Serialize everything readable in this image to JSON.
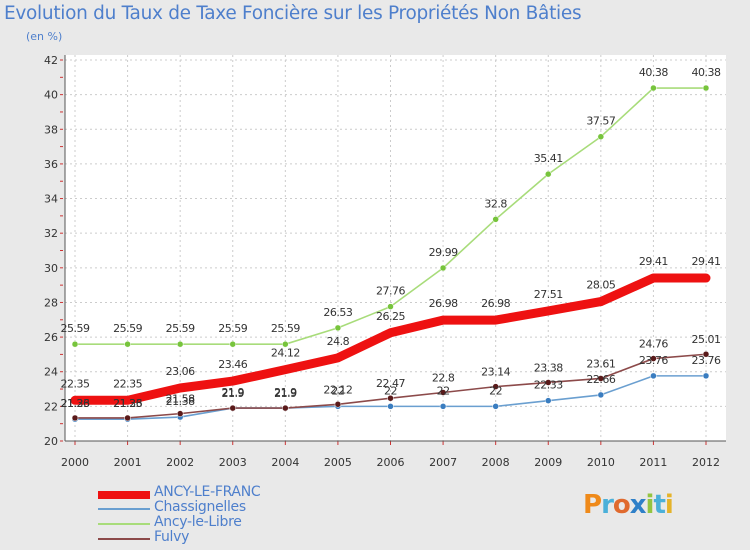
{
  "title": "Evolution du Taux de Taxe Foncière sur les Propriétés Non Bâties",
  "unit_label": "(en %)",
  "logo_text": "Proxiti",
  "chart_data": {
    "type": "line",
    "title": "Evolution du Taux de Taxe Foncière sur les Propriétés Non Bâties",
    "ylabel": "(en %)",
    "xlabel": "",
    "x": [
      "2000",
      "2001",
      "2002",
      "2003",
      "2004",
      "2005",
      "2006",
      "2007",
      "2008",
      "2009",
      "2010",
      "2011",
      "2012"
    ],
    "ylim": [
      20,
      42
    ],
    "yticks": [
      20,
      22,
      24,
      26,
      28,
      30,
      32,
      34,
      36,
      38,
      40,
      42
    ],
    "grid": true,
    "legend_position": "bottom-left",
    "series": [
      {
        "name": "ANCY-LE-FRANC",
        "color": "#ee1111",
        "marker": "#ee1111",
        "values": [
          22.35,
          22.35,
          23.06,
          23.46,
          24.12,
          24.8,
          26.25,
          26.98,
          26.98,
          27.51,
          28.05,
          29.41,
          29.41
        ],
        "labels": [
          "22.35",
          "22.35",
          "23.06",
          "23.46",
          "24.12",
          "24.8",
          "26.25",
          "26.98",
          "26.98",
          "27.51",
          "28.05",
          "29.41",
          "29.41"
        ]
      },
      {
        "name": "Chassignelles",
        "color": "#6a9fd0",
        "marker": "#3a7dc0",
        "values": [
          21.26,
          21.26,
          21.38,
          21.9,
          21.9,
          22,
          22,
          22,
          22,
          22.33,
          22.66,
          23.76,
          23.76
        ],
        "labels": [
          "21.26",
          "21.26",
          "21.38",
          "21.9",
          "21.9",
          "22",
          "22",
          "22",
          "22",
          "22.33",
          "22.66",
          "23.76",
          "23.76"
        ]
      },
      {
        "name": "Ancy-le-Libre",
        "color": "#a8dc7a",
        "marker": "#77c43c",
        "values": [
          25.59,
          25.59,
          25.59,
          25.59,
          25.59,
          26.53,
          27.76,
          29.99,
          32.8,
          35.41,
          37.57,
          40.38,
          40.38
        ],
        "labels": [
          "25.59",
          "25.59",
          "25.59",
          "25.59",
          "25.59",
          "26.53",
          "27.76",
          "29.99",
          "32.8",
          "35.41",
          "37.57",
          "40.38",
          "40.38"
        ]
      },
      {
        "name": "Fulvy",
        "color": "#8c4a4a",
        "marker": "#5a1a1a",
        "values": [
          21.33,
          21.33,
          21.58,
          21.9,
          21.9,
          22.12,
          22.47,
          22.8,
          23.14,
          23.38,
          23.61,
          24.76,
          25.01
        ],
        "labels": [
          "21.33",
          "21.33",
          "21.58",
          "21.9",
          "21.9",
          "22.12",
          "22.47",
          "22.8",
          "23.14",
          "23.38",
          "23.61",
          "24.76",
          "25.01"
        ]
      }
    ]
  }
}
